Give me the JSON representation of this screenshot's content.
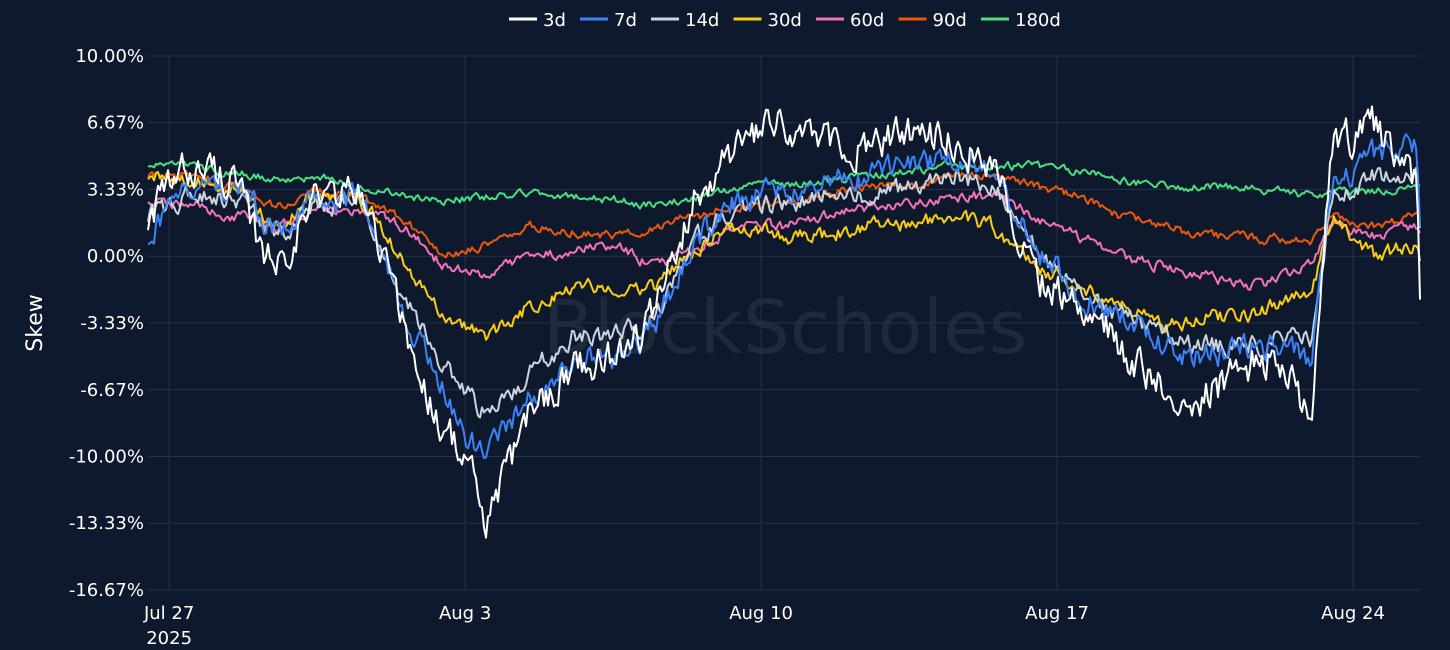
{
  "watermark": "BlockScholes",
  "chart_data": {
    "type": "line",
    "ylabel": "Skew",
    "xlabel": "",
    "x_range": [
      "2025-07-26T12:00",
      "2025-08-25T14:00"
    ],
    "ylim": [
      -16.67,
      10.0
    ],
    "y_ticks": [
      {
        "value": 10.0,
        "label": "10.00%"
      },
      {
        "value": 6.67,
        "label": "6.67%"
      },
      {
        "value": 3.33,
        "label": "3.33%"
      },
      {
        "value": 0.0,
        "label": "0.00%"
      },
      {
        "value": -3.33,
        "label": "-3.33%"
      },
      {
        "value": -6.67,
        "label": "-6.67%"
      },
      {
        "value": -10.0,
        "label": "-10.00%"
      },
      {
        "value": -13.33,
        "label": "-13.33%"
      },
      {
        "value": -16.67,
        "label": "-16.67%"
      }
    ],
    "x_ticks": [
      {
        "value": "2025-07-27",
        "label": "Jul 27",
        "sublabel": "2025"
      },
      {
        "value": "2025-08-03",
        "label": "Aug 3"
      },
      {
        "value": "2025-08-10",
        "label": "Aug 10"
      },
      {
        "value": "2025-08-17",
        "label": "Aug 17"
      },
      {
        "value": "2025-08-24",
        "label": "Aug 24"
      }
    ],
    "grid": true,
    "legend_position": "top-center",
    "series": [
      {
        "name": "3d",
        "color": "#ffffff",
        "noise": 1.0,
        "x": [
          "2025-07-26T12:00",
          "2025-07-27T12:00",
          "2025-07-28T12:00",
          "2025-07-29T00:00",
          "2025-07-29T12:00",
          "2025-07-30T12:00",
          "2025-07-31T12:00",
          "2025-08-01T00:00",
          "2025-08-01T12:00",
          "2025-08-02T00:00",
          "2025-08-02T12:00",
          "2025-08-03T00:00",
          "2025-08-03T12:00",
          "2025-08-04T12:00",
          "2025-08-05T12:00",
          "2025-08-06T12:00",
          "2025-08-07T12:00",
          "2025-08-08T12:00",
          "2025-08-09T12:00",
          "2025-08-10T12:00",
          "2025-08-11T12:00",
          "2025-08-12T12:00",
          "2025-08-13T12:00",
          "2025-08-14T12:00",
          "2025-08-15T12:00",
          "2025-08-16T12:00",
          "2025-08-17T12:00",
          "2025-08-18T00:00",
          "2025-08-18T12:00",
          "2025-08-19T12:00",
          "2025-08-20T12:00",
          "2025-08-21T12:00",
          "2025-08-22T00:00",
          "2025-08-22T12:00",
          "2025-08-23T00:00",
          "2025-08-23T12:00",
          "2025-08-24T12:00",
          "2025-08-25T12:00",
          "2025-08-25T14:00"
        ],
        "y": [
          2.0,
          4.5,
          4.0,
          1.0,
          -0.5,
          3.0,
          3.2,
          0.5,
          -3.0,
          -6.5,
          -8.5,
          -10.0,
          -13.5,
          -8.0,
          -5.5,
          -5.0,
          -3.0,
          3.5,
          5.5,
          6.5,
          5.5,
          5.5,
          6.0,
          6.0,
          4.5,
          -1.0,
          -2.5,
          -2.5,
          -5.0,
          -6.5,
          -7.0,
          -5.5,
          -5.0,
          -6.0,
          -8.5,
          5.5,
          6.5,
          3.5,
          -2.5
        ]
      },
      {
        "name": "7d",
        "color": "#3b82f6",
        "noise": 0.7,
        "x": [
          "2025-07-26T12:00",
          "2025-07-27T12:00",
          "2025-07-28T12:00",
          "2025-07-29T12:00",
          "2025-07-30T12:00",
          "2025-07-31T12:00",
          "2025-08-01T00:00",
          "2025-08-01T12:00",
          "2025-08-02T12:00",
          "2025-08-03T00:00",
          "2025-08-03T12:00",
          "2025-08-04T12:00",
          "2025-08-05T12:00",
          "2025-08-06T12:00",
          "2025-08-07T12:00",
          "2025-08-08T12:00",
          "2025-08-09T12:00",
          "2025-08-10T12:00",
          "2025-08-11T12:00",
          "2025-08-12T12:00",
          "2025-08-13T12:00",
          "2025-08-14T12:00",
          "2025-08-15T12:00",
          "2025-08-16T12:00",
          "2025-08-17T12:00",
          "2025-08-18T12:00",
          "2025-08-19T12:00",
          "2025-08-20T12:00",
          "2025-08-21T12:00",
          "2025-08-22T12:00",
          "2025-08-23T00:00",
          "2025-08-23T12:00",
          "2025-08-24T12:00",
          "2025-08-25T12:00",
          "2025-08-25T14:00"
        ],
        "y": [
          1.0,
          3.5,
          3.5,
          1.5,
          3.0,
          3.0,
          0.5,
          -2.5,
          -6.5,
          -9.0,
          -10.0,
          -7.0,
          -5.0,
          -5.0,
          -3.5,
          1.0,
          3.0,
          3.0,
          3.5,
          4.0,
          4.5,
          5.0,
          4.0,
          0.5,
          -2.0,
          -3.0,
          -4.5,
          -5.0,
          -4.5,
          -4.5,
          -5.5,
          3.5,
          5.0,
          5.5,
          1.0
        ]
      },
      {
        "name": "14d",
        "color": "#cbd5e1",
        "noise": 0.55,
        "x": [
          "2025-07-26T12:00",
          "2025-07-27T12:00",
          "2025-07-28T12:00",
          "2025-07-29T12:00",
          "2025-07-30T12:00",
          "2025-07-31T12:00",
          "2025-08-01T00:00",
          "2025-08-01T12:00",
          "2025-08-02T12:00",
          "2025-08-03T12:00",
          "2025-08-04T12:00",
          "2025-08-05T12:00",
          "2025-08-06T12:00",
          "2025-08-07T12:00",
          "2025-08-08T12:00",
          "2025-08-09T12:00",
          "2025-08-10T12:00",
          "2025-08-11T12:00",
          "2025-08-12T12:00",
          "2025-08-13T12:00",
          "2025-08-14T12:00",
          "2025-08-15T12:00",
          "2025-08-16T12:00",
          "2025-08-17T12:00",
          "2025-08-18T12:00",
          "2025-08-19T12:00",
          "2025-08-20T12:00",
          "2025-08-21T12:00",
          "2025-08-22T12:00",
          "2025-08-23T00:00",
          "2025-08-23T12:00",
          "2025-08-24T12:00",
          "2025-08-25T12:00",
          "2025-08-25T14:00"
        ],
        "y": [
          2.0,
          3.0,
          3.0,
          1.0,
          2.5,
          2.8,
          0.5,
          -2.0,
          -5.5,
          -8.0,
          -6.0,
          -4.0,
          -4.0,
          -3.0,
          1.0,
          2.5,
          2.5,
          3.0,
          3.0,
          3.5,
          4.0,
          3.5,
          0.5,
          -2.0,
          -3.0,
          -4.0,
          -4.5,
          -4.5,
          -4.0,
          -4.0,
          3.0,
          4.0,
          4.0,
          1.5
        ]
      },
      {
        "name": "30d",
        "color": "#facc15",
        "noise": 0.4,
        "x": [
          "2025-07-26T12:00",
          "2025-07-27T12:00",
          "2025-07-28T12:00",
          "2025-07-29T12:00",
          "2025-07-30T12:00",
          "2025-07-31T12:00",
          "2025-08-01T00:00",
          "2025-08-01T12:00",
          "2025-08-02T12:00",
          "2025-08-03T12:00",
          "2025-08-04T12:00",
          "2025-08-05T12:00",
          "2025-08-06T12:00",
          "2025-08-07T12:00",
          "2025-08-08T12:00",
          "2025-08-09T12:00",
          "2025-08-10T12:00",
          "2025-08-11T12:00",
          "2025-08-12T12:00",
          "2025-08-13T12:00",
          "2025-08-14T12:00",
          "2025-08-15T12:00",
          "2025-08-16T12:00",
          "2025-08-17T12:00",
          "2025-08-18T12:00",
          "2025-08-19T12:00",
          "2025-08-20T12:00",
          "2025-08-21T12:00",
          "2025-08-22T12:00",
          "2025-08-23T00:00",
          "2025-08-23T12:00",
          "2025-08-24T12:00",
          "2025-08-25T12:00",
          "2025-08-25T14:00"
        ],
        "y": [
          4.0,
          3.8,
          3.5,
          1.5,
          3.0,
          3.0,
          1.5,
          0.0,
          -3.0,
          -4.0,
          -2.5,
          -1.5,
          -1.5,
          -1.5,
          0.5,
          1.5,
          1.0,
          1.0,
          1.5,
          1.5,
          2.0,
          1.5,
          -0.5,
          -1.5,
          -2.5,
          -3.5,
          -3.0,
          -3.0,
          -2.0,
          -2.0,
          2.0,
          0.0,
          0.5,
          -0.3
        ]
      },
      {
        "name": "60d",
        "color": "#f472b6",
        "noise": 0.3,
        "x": [
          "2025-07-26T12:00",
          "2025-07-27T12:00",
          "2025-07-28T12:00",
          "2025-07-29T12:00",
          "2025-07-30T12:00",
          "2025-07-31T12:00",
          "2025-08-01T12:00",
          "2025-08-02T12:00",
          "2025-08-03T12:00",
          "2025-08-04T12:00",
          "2025-08-05T12:00",
          "2025-08-06T12:00",
          "2025-08-07T12:00",
          "2025-08-08T12:00",
          "2025-08-09T12:00",
          "2025-08-10T12:00",
          "2025-08-11T12:00",
          "2025-08-12T12:00",
          "2025-08-13T12:00",
          "2025-08-14T12:00",
          "2025-08-15T12:00",
          "2025-08-16T12:00",
          "2025-08-17T12:00",
          "2025-08-18T12:00",
          "2025-08-19T12:00",
          "2025-08-20T12:00",
          "2025-08-21T12:00",
          "2025-08-22T12:00",
          "2025-08-23T00:00",
          "2025-08-23T12:00",
          "2025-08-24T12:00",
          "2025-08-25T12:00",
          "2025-08-25T14:00"
        ],
        "y": [
          2.8,
          2.5,
          2.0,
          1.5,
          2.5,
          2.2,
          1.5,
          -0.5,
          -1.0,
          0.0,
          0.3,
          0.5,
          -0.5,
          0.5,
          1.5,
          1.5,
          2.0,
          2.5,
          2.5,
          3.0,
          3.0,
          2.0,
          1.0,
          0.0,
          -0.5,
          -1.0,
          -1.5,
          -1.0,
          -0.5,
          1.5,
          1.0,
          1.5,
          1.0
        ]
      },
      {
        "name": "90d",
        "color": "#ea580c",
        "noise": 0.25,
        "x": [
          "2025-07-26T12:00",
          "2025-07-27T12:00",
          "2025-07-28T12:00",
          "2025-07-29T12:00",
          "2025-07-30T12:00",
          "2025-07-31T12:00",
          "2025-08-01T12:00",
          "2025-08-02T12:00",
          "2025-08-03T12:00",
          "2025-08-04T12:00",
          "2025-08-05T12:00",
          "2025-08-06T12:00",
          "2025-08-07T12:00",
          "2025-08-08T12:00",
          "2025-08-09T12:00",
          "2025-08-10T12:00",
          "2025-08-11T12:00",
          "2025-08-12T12:00",
          "2025-08-13T12:00",
          "2025-08-14T12:00",
          "2025-08-15T12:00",
          "2025-08-16T12:00",
          "2025-08-17T12:00",
          "2025-08-18T12:00",
          "2025-08-19T12:00",
          "2025-08-20T12:00",
          "2025-08-21T12:00",
          "2025-08-22T12:00",
          "2025-08-23T00:00",
          "2025-08-23T12:00",
          "2025-08-24T12:00",
          "2025-08-25T12:00",
          "2025-08-25T14:00"
        ],
        "y": [
          4.0,
          4.0,
          3.5,
          2.5,
          3.2,
          3.0,
          2.0,
          0.0,
          0.5,
          1.5,
          1.2,
          1.0,
          1.5,
          2.0,
          2.5,
          2.5,
          3.0,
          3.5,
          3.5,
          4.0,
          4.0,
          3.5,
          3.0,
          2.0,
          1.5,
          1.0,
          1.0,
          0.8,
          0.8,
          2.0,
          1.5,
          2.0,
          2.0
        ]
      },
      {
        "name": "180d",
        "color": "#4ade80",
        "noise": 0.22,
        "x": [
          "2025-07-26T12:00",
          "2025-07-27T12:00",
          "2025-07-28T12:00",
          "2025-07-29T12:00",
          "2025-07-30T12:00",
          "2025-07-31T12:00",
          "2025-08-01T12:00",
          "2025-08-02T12:00",
          "2025-08-03T12:00",
          "2025-08-04T12:00",
          "2025-08-05T12:00",
          "2025-08-06T12:00",
          "2025-08-07T12:00",
          "2025-08-08T12:00",
          "2025-08-09T12:00",
          "2025-08-10T12:00",
          "2025-08-11T12:00",
          "2025-08-12T12:00",
          "2025-08-13T12:00",
          "2025-08-14T12:00",
          "2025-08-15T12:00",
          "2025-08-16T12:00",
          "2025-08-17T12:00",
          "2025-08-18T12:00",
          "2025-08-19T12:00",
          "2025-08-20T12:00",
          "2025-08-21T12:00",
          "2025-08-22T12:00",
          "2025-08-23T00:00",
          "2025-08-23T12:00",
          "2025-08-24T12:00",
          "2025-08-25T12:00",
          "2025-08-25T14:00"
        ],
        "y": [
          4.5,
          4.5,
          4.2,
          3.8,
          4.0,
          3.5,
          3.0,
          2.8,
          3.0,
          3.2,
          3.0,
          2.8,
          2.5,
          3.0,
          3.5,
          3.5,
          3.8,
          4.0,
          4.2,
          4.5,
          4.5,
          4.5,
          4.2,
          3.8,
          3.5,
          3.5,
          3.5,
          3.2,
          3.0,
          3.2,
          3.2,
          3.5,
          3.5
        ]
      }
    ]
  }
}
